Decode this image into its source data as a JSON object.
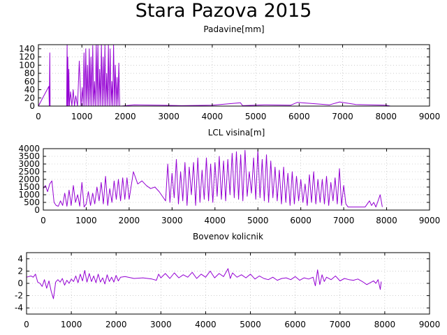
{
  "figure": {
    "title": "Stara Pazova 2015"
  },
  "colors": {
    "series": "#9400d3",
    "grid": "#b0b0b0"
  },
  "chart_data": [
    {
      "type": "line",
      "title": "Padavine[mm]",
      "xlim": [
        0,
        9000
      ],
      "ylim": [
        0,
        150
      ],
      "xticks": [
        0,
        1000,
        2000,
        3000,
        4000,
        5000,
        6000,
        7000,
        8000,
        9000
      ],
      "yticks": [
        0,
        20,
        40,
        60,
        80,
        100,
        120,
        140
      ],
      "grid": true,
      "series": [
        {
          "x": [
            0,
            240,
            250,
            262,
            270,
            280,
            650,
            660,
            668,
            676,
            690,
            700,
            712,
            740,
            770,
            800,
            830,
            860,
            900,
            940,
            980,
            1010,
            1030,
            1050,
            1070,
            1090,
            1110,
            1130,
            1150,
            1170,
            1190,
            1210,
            1230,
            1250,
            1270,
            1290,
            1310,
            1330,
            1350,
            1370,
            1390,
            1410,
            1430,
            1450,
            1470,
            1490,
            1510,
            1530,
            1550,
            1570,
            1590,
            1610,
            1630,
            1650,
            1670,
            1690,
            1710,
            1730,
            1750,
            1770,
            1790,
            1810,
            1830,
            1850,
            1870,
            1890,
            1900,
            2200,
            2800,
            3300,
            4000,
            4650,
            4700,
            5200,
            5800,
            5960,
            6700,
            6930,
            7300,
            8000,
            8100
          ],
          "y": [
            0,
            48,
            0,
            130,
            0,
            0,
            0,
            150,
            0,
            120,
            0,
            90,
            0,
            35,
            0,
            40,
            0,
            25,
            0,
            110,
            0,
            45,
            0,
            130,
            0,
            140,
            0,
            100,
            0,
            140,
            0,
            120,
            0,
            148,
            0,
            60,
            0,
            150,
            0,
            150,
            0,
            90,
            0,
            150,
            0,
            120,
            0,
            150,
            0,
            80,
            0,
            150,
            0,
            140,
            0,
            60,
            0,
            150,
            0,
            100,
            0,
            70,
            0,
            105,
            0,
            0,
            0,
            3,
            2,
            1,
            2,
            8,
            1,
            3,
            2,
            9,
            3,
            10,
            4,
            2,
            0
          ]
        }
      ]
    },
    {
      "type": "line",
      "title": "LCL visina[m]",
      "xlim": [
        0,
        9000
      ],
      "ylim": [
        0,
        4000
      ],
      "xticks": [
        0,
        1000,
        2000,
        3000,
        4000,
        5000,
        6000,
        7000,
        8000,
        9000
      ],
      "yticks": [
        0,
        500,
        1000,
        1500,
        2000,
        2500,
        3000,
        3500,
        4000
      ],
      "grid": true,
      "series": [
        {
          "x": [
            0,
            50,
            100,
            150,
            200,
            250,
            300,
            350,
            400,
            450,
            500,
            550,
            600,
            650,
            700,
            750,
            800,
            850,
            900,
            950,
            1000,
            1050,
            1100,
            1150,
            1200,
            1250,
            1300,
            1350,
            1400,
            1450,
            1500,
            1550,
            1600,
            1650,
            1700,
            1750,
            1800,
            1850,
            1900,
            1950,
            2000,
            2100,
            2200,
            2300,
            2400,
            2500,
            2600,
            2700,
            2800,
            2850,
            2900,
            2950,
            3000,
            3050,
            3100,
            3150,
            3200,
            3250,
            3300,
            3350,
            3400,
            3450,
            3500,
            3550,
            3600,
            3650,
            3700,
            3750,
            3800,
            3850,
            3900,
            3950,
            4000,
            4050,
            4100,
            4150,
            4200,
            4250,
            4300,
            4350,
            4400,
            4450,
            4500,
            4550,
            4600,
            4650,
            4700,
            4750,
            4800,
            4850,
            4900,
            4950,
            5000,
            5050,
            5100,
            5150,
            5200,
            5250,
            5300,
            5350,
            5400,
            5450,
            5500,
            5550,
            5600,
            5650,
            5700,
            5750,
            5800,
            5850,
            5900,
            5950,
            6000,
            6050,
            6100,
            6150,
            6200,
            6250,
            6300,
            6350,
            6400,
            6450,
            6500,
            6550,
            6600,
            6650,
            6700,
            6750,
            6800,
            6850,
            6900,
            6950,
            7000,
            7050,
            7100,
            7200,
            7300,
            7400,
            7500,
            7600,
            7650,
            7700,
            7750,
            7800,
            7850,
            7900
          ],
          "y": [
            1400,
            1600,
            1200,
            1700,
            1900,
            500,
            300,
            250,
            600,
            300,
            1100,
            250,
            1300,
            300,
            1600,
            500,
            1000,
            250,
            1800,
            200,
            400,
            1200,
            300,
            1100,
            400,
            1500,
            600,
            1800,
            400,
            2200,
            300,
            1400,
            500,
            1900,
            700,
            2000,
            600,
            2100,
            700,
            2100,
            700,
            2500,
            1700,
            1900,
            1600,
            1400,
            1500,
            1200,
            800,
            600,
            3000,
            500,
            2400,
            800,
            3300,
            400,
            2500,
            600,
            3100,
            300,
            2800,
            1000,
            3100,
            300,
            3400,
            500,
            2600,
            700,
            3400,
            600,
            3000,
            500,
            3100,
            900,
            3500,
            700,
            3200,
            600,
            3300,
            1000,
            3700,
            800,
            3800,
            700,
            3600,
            600,
            3900,
            900,
            2500,
            1100,
            3400,
            700,
            3900,
            800,
            3300,
            600,
            3600,
            500,
            3200,
            800,
            2800,
            600,
            2600,
            400,
            2800,
            500,
            2400,
            300,
            2500,
            400,
            2200,
            600,
            2000,
            500,
            1700,
            300,
            2300,
            500,
            2500,
            400,
            2000,
            500,
            2000,
            400,
            2200,
            300,
            1800,
            600,
            2100,
            400,
            2700,
            300,
            1600,
            400,
            200,
            200,
            200,
            200,
            200,
            600,
            300,
            500,
            200,
            600,
            1000,
            200
          ]
        }
      ]
    },
    {
      "type": "line",
      "title": "Bovenov kolicnik",
      "xlim": [
        0,
        9000
      ],
      "ylim": [
        -5,
        5
      ],
      "xticks": [
        0,
        1000,
        2000,
        3000,
        4000,
        5000,
        6000,
        7000,
        8000,
        9000
      ],
      "yticks": [
        -4,
        -2,
        0,
        2,
        4
      ],
      "grid": true,
      "series": [
        {
          "x": [
            0,
            100,
            150,
            200,
            250,
            300,
            350,
            400,
            450,
            500,
            550,
            600,
            650,
            700,
            750,
            800,
            850,
            900,
            950,
            1000,
            1050,
            1100,
            1150,
            1200,
            1250,
            1300,
            1350,
            1400,
            1450,
            1500,
            1550,
            1600,
            1650,
            1700,
            1750,
            1800,
            1850,
            1900,
            1950,
            2000,
            2050,
            2100,
            2200,
            2400,
            2600,
            2800,
            2900,
            2950,
            3000,
            3100,
            3200,
            3300,
            3400,
            3500,
            3600,
            3700,
            3800,
            3900,
            4000,
            4100,
            4200,
            4300,
            4400,
            4500,
            4550,
            4600,
            4700,
            4800,
            4900,
            5000,
            5100,
            5200,
            5300,
            5400,
            5500,
            5600,
            5700,
            5800,
            5900,
            6000,
            6100,
            6200,
            6300,
            6400,
            6450,
            6500,
            6550,
            6600,
            6650,
            6700,
            6800,
            6900,
            7000,
            7100,
            7200,
            7300,
            7400,
            7500,
            7600,
            7700,
            7750,
            7800,
            7850,
            7900,
            7920
          ],
          "y": [
            1.0,
            1.2,
            1.0,
            1.5,
            0.2,
            0.0,
            -0.5,
            0.6,
            -0.8,
            0.4,
            -1.3,
            -2.5,
            0.2,
            0.6,
            0.2,
            0.8,
            -0.3,
            0.5,
            0.0,
            0.7,
            0.3,
            1.2,
            0.1,
            1.5,
            0.4,
            2.1,
            0.2,
            1.6,
            0.3,
            1.2,
            0.1,
            1.5,
            0.2,
            0.9,
            -0.1,
            1.4,
            0.3,
            1.0,
            0.2,
            1.3,
            0.4,
            1.0,
            1.1,
            0.8,
            0.9,
            0.7,
            0.5,
            1.5,
            0.9,
            1.6,
            0.8,
            1.7,
            0.9,
            1.4,
            1.0,
            1.8,
            0.8,
            1.5,
            1.0,
            2.0,
            0.9,
            1.6,
            1.1,
            2.4,
            0.8,
            1.7,
            1.0,
            1.4,
            0.9,
            1.5,
            0.7,
            1.2,
            0.8,
            0.6,
            1.0,
            0.5,
            0.8,
            0.9,
            0.6,
            1.1,
            0.5,
            0.9,
            0.7,
            1.0,
            -0.4,
            2.2,
            -0.2,
            1.4,
            0.3,
            1.0,
            0.6,
            1.2,
            0.4,
            0.8,
            0.6,
            0.5,
            0.7,
            0.3,
            -0.2,
            0.2,
            0.4,
            0.0,
            0.6,
            -1.0,
            0.3
          ]
        }
      ]
    }
  ]
}
